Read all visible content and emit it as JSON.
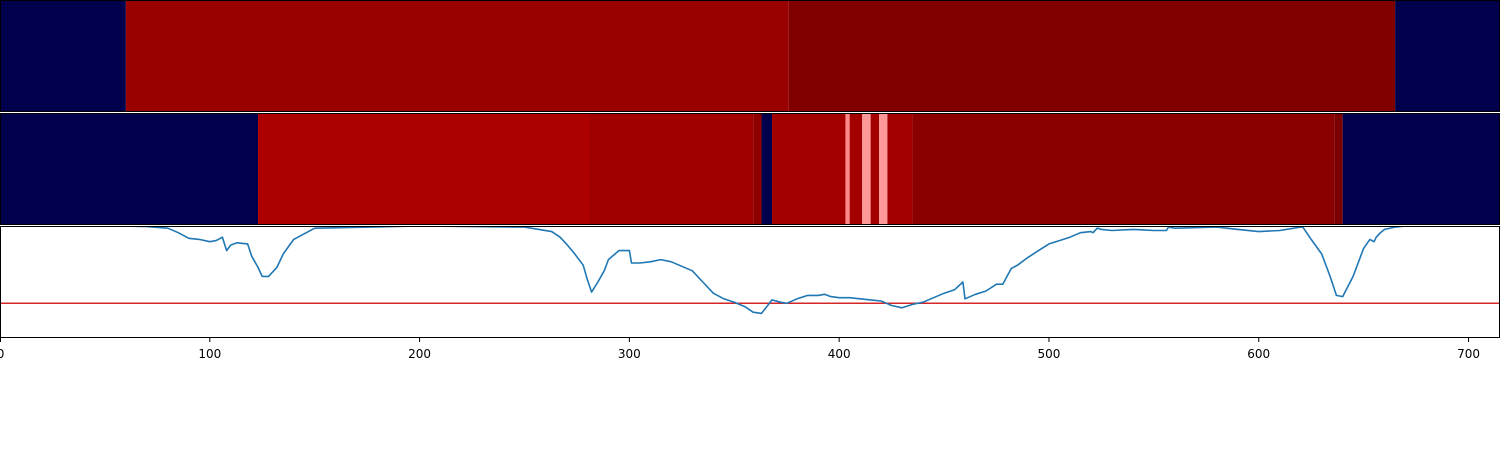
{
  "chart_data": [
    {
      "type": "heatmap",
      "xlim": [
        0,
        715
      ],
      "segments": [
        {
          "start": 0,
          "end": 60,
          "color": "#00004c"
        },
        {
          "start": 60,
          "end": 376,
          "color": "#990000"
        },
        {
          "start": 376,
          "end": 665,
          "color": "#800000"
        },
        {
          "start": 665,
          "end": 715,
          "color": "#00004c"
        }
      ]
    },
    {
      "type": "heatmap",
      "xlim": [
        0,
        715
      ],
      "segments": [
        {
          "start": 0,
          "end": 123,
          "color": "#00004c"
        },
        {
          "start": 123,
          "end": 281,
          "color": "#ad0000"
        },
        {
          "start": 281,
          "end": 359,
          "color": "#a00000"
        },
        {
          "start": 359,
          "end": 363,
          "color": "#8e0000"
        },
        {
          "start": 363,
          "end": 368,
          "color": "#00004c"
        },
        {
          "start": 368,
          "end": 403,
          "color": "#a30000"
        },
        {
          "start": 403,
          "end": 405,
          "color": "#ff8888"
        },
        {
          "start": 405,
          "end": 411,
          "color": "#a30000"
        },
        {
          "start": 411,
          "end": 415,
          "color": "#ff9999"
        },
        {
          "start": 415,
          "end": 419,
          "color": "#a30000"
        },
        {
          "start": 419,
          "end": 423,
          "color": "#ff9999"
        },
        {
          "start": 423,
          "end": 435,
          "color": "#a30000"
        },
        {
          "start": 435,
          "end": 636,
          "color": "#8a0000"
        },
        {
          "start": 636,
          "end": 640,
          "color": "#7a0000"
        },
        {
          "start": 640,
          "end": 715,
          "color": "#00004c"
        }
      ]
    },
    {
      "type": "line",
      "xlim": [
        0,
        715
      ],
      "ylim": [
        0,
        1
      ],
      "xticks": [
        0,
        100,
        200,
        300,
        400,
        500,
        600,
        700
      ],
      "xtick_labels": [
        "0",
        "100",
        "200",
        "300",
        "400",
        "500",
        "600",
        "700"
      ],
      "line_color": "#1f77b4",
      "threshold": {
        "y": 0.31,
        "color": "#d62728"
      },
      "series": [
        {
          "x": [
            0,
            60,
            70,
            80,
            85,
            90,
            95,
            100,
            103,
            106,
            108,
            110,
            113,
            118,
            120,
            123,
            125,
            128,
            132,
            135,
            140,
            150,
            200,
            250,
            263,
            267,
            270,
            274,
            278,
            280,
            282,
            285,
            288,
            290,
            295,
            300,
            301,
            305,
            310,
            315,
            320,
            325,
            330,
            335,
            340,
            345,
            350,
            355,
            359,
            363,
            368,
            372,
            375,
            380,
            385,
            390,
            393,
            396,
            400,
            405,
            410,
            415,
            420,
            425,
            430,
            435,
            440,
            445,
            450,
            455,
            459,
            460,
            465,
            470,
            475,
            478,
            480,
            482,
            485,
            490,
            495,
            500,
            505,
            510,
            515,
            520,
            521,
            523,
            525,
            530,
            540,
            550,
            556,
            557,
            560,
            580,
            590,
            590,
            600,
            610,
            620,
            621,
            625,
            630,
            634,
            637,
            640,
            645,
            648,
            650,
            653,
            655,
            656,
            658,
            660,
            665,
            670,
            680,
            700,
            715
          ],
          "y": [
            1.0,
            1.0,
            0.995,
            0.98,
            0.94,
            0.89,
            0.88,
            0.86,
            0.87,
            0.9,
            0.78,
            0.83,
            0.85,
            0.84,
            0.73,
            0.63,
            0.55,
            0.55,
            0.63,
            0.75,
            0.88,
            0.98,
            1.0,
            0.99,
            0.95,
            0.9,
            0.84,
            0.75,
            0.65,
            0.52,
            0.41,
            0.5,
            0.6,
            0.7,
            0.78,
            0.78,
            0.67,
            0.67,
            0.68,
            0.7,
            0.68,
            0.64,
            0.6,
            0.5,
            0.4,
            0.35,
            0.32,
            0.28,
            0.23,
            0.22,
            0.34,
            0.32,
            0.31,
            0.35,
            0.38,
            0.38,
            0.39,
            0.37,
            0.36,
            0.36,
            0.35,
            0.34,
            0.33,
            0.29,
            0.27,
            0.3,
            0.32,
            0.36,
            0.4,
            0.43,
            0.5,
            0.35,
            0.39,
            0.42,
            0.48,
            0.48,
            0.55,
            0.62,
            0.65,
            0.72,
            0.78,
            0.84,
            0.87,
            0.9,
            0.94,
            0.95,
            0.94,
            0.98,
            0.97,
            0.96,
            0.97,
            0.96,
            0.96,
            0.99,
            0.98,
            0.99,
            0.97,
            0.97,
            0.95,
            0.96,
            0.99,
            0.99,
            0.88,
            0.75,
            0.55,
            0.38,
            0.37,
            0.55,
            0.7,
            0.8,
            0.88,
            0.86,
            0.9,
            0.94,
            0.97,
            0.99,
            1.0,
            1.0,
            1.0,
            1.0
          ]
        }
      ]
    }
  ]
}
